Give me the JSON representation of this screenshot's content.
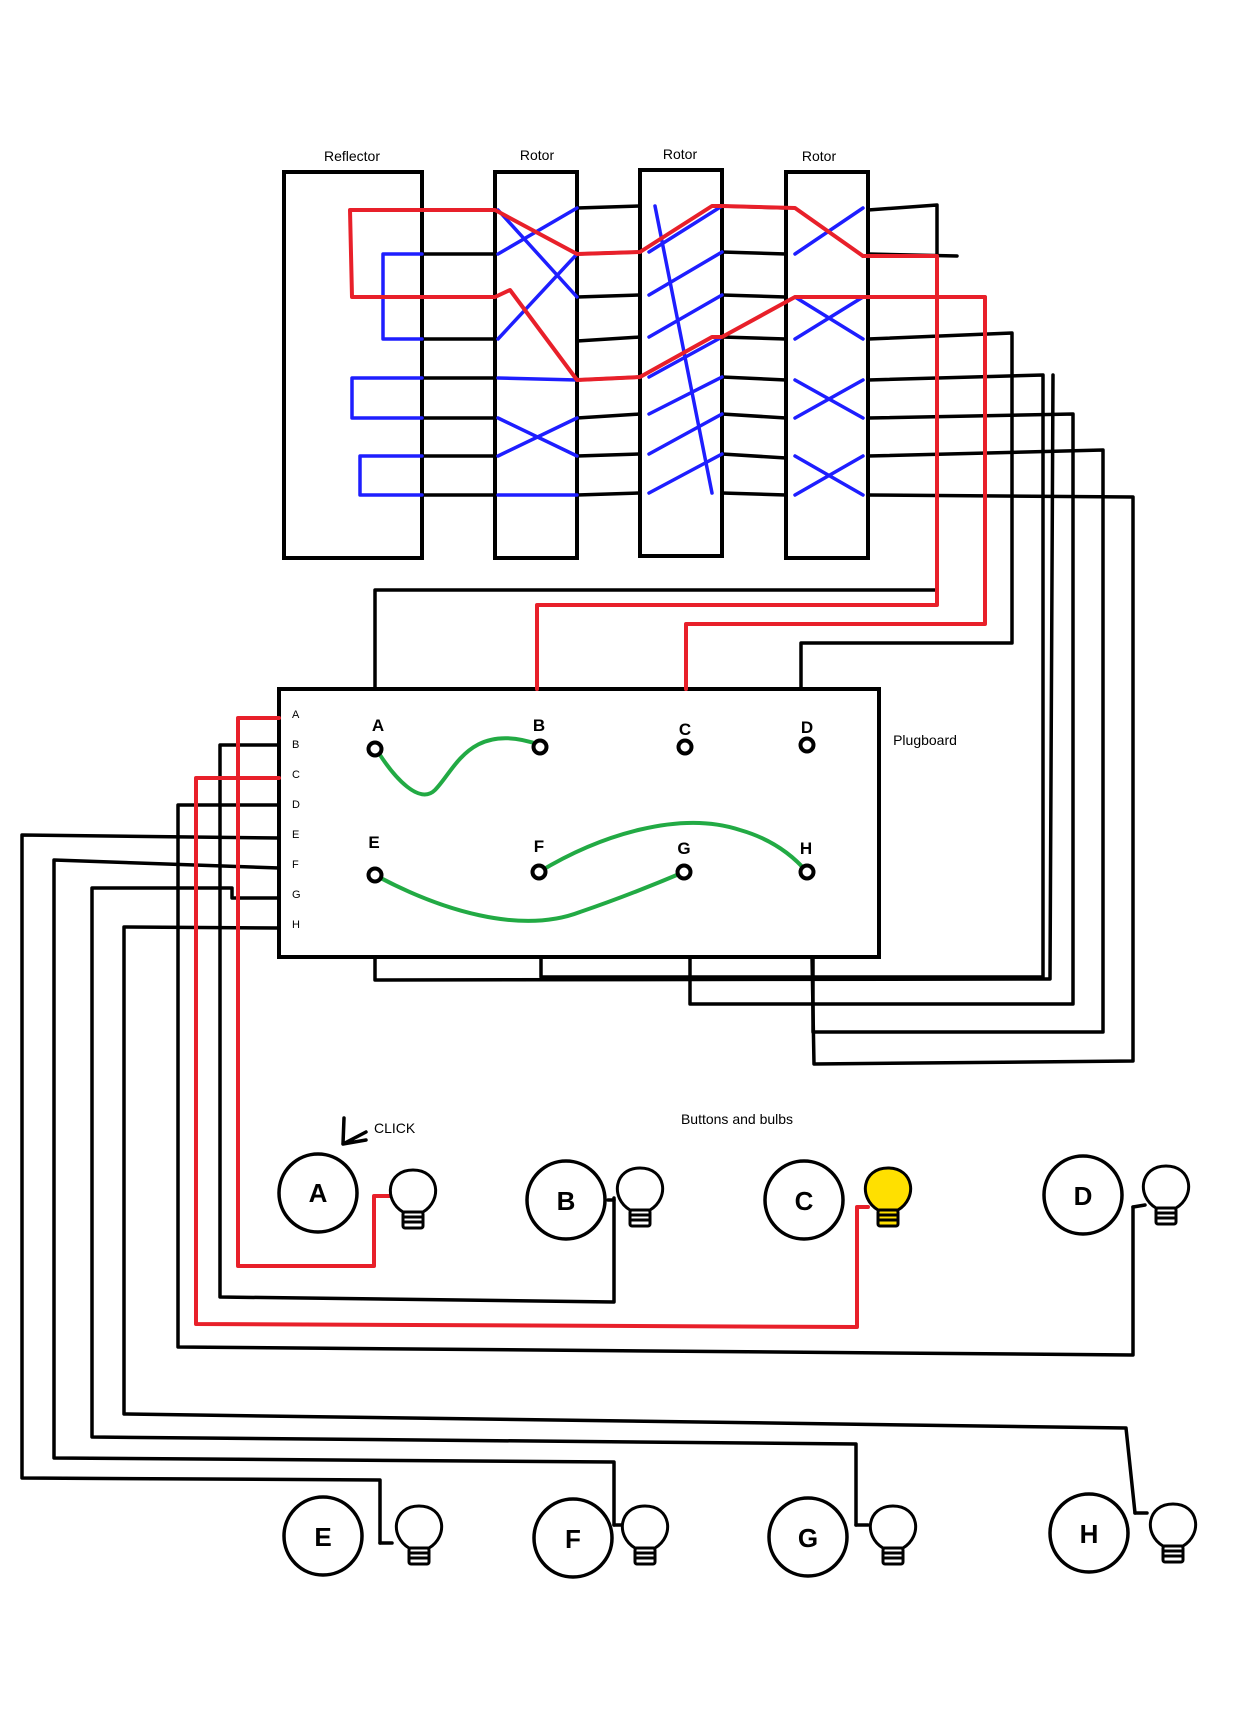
{
  "labels": {
    "reflector": "Reflector",
    "rotor1": "Rotor",
    "rotor2": "Rotor",
    "rotor3": "Rotor",
    "plugboard": "Plugboard",
    "buttons_and_bulbs": "Buttons and bulbs",
    "click": "CLICK"
  },
  "plugboard_pins": [
    "A",
    "B",
    "C",
    "D",
    "E",
    "F",
    "G",
    "H"
  ],
  "plugboard_jacks": [
    "A",
    "B",
    "C",
    "D",
    "E",
    "F",
    "G",
    "H"
  ],
  "plugboard_pairs": [
    [
      "A",
      "B"
    ],
    [
      "E",
      "G"
    ],
    [
      "F",
      "H"
    ]
  ],
  "buttons": [
    "A",
    "B",
    "C",
    "D",
    "E",
    "F",
    "G",
    "H"
  ],
  "lit_bulb": "C",
  "pressed_button": "A",
  "colors": {
    "wire": "#000000",
    "internal_wiring": "#1e1eff",
    "active_path": "#e8202a",
    "plug_cable": "#22aa44",
    "lit_bulb": "#ffe000"
  }
}
